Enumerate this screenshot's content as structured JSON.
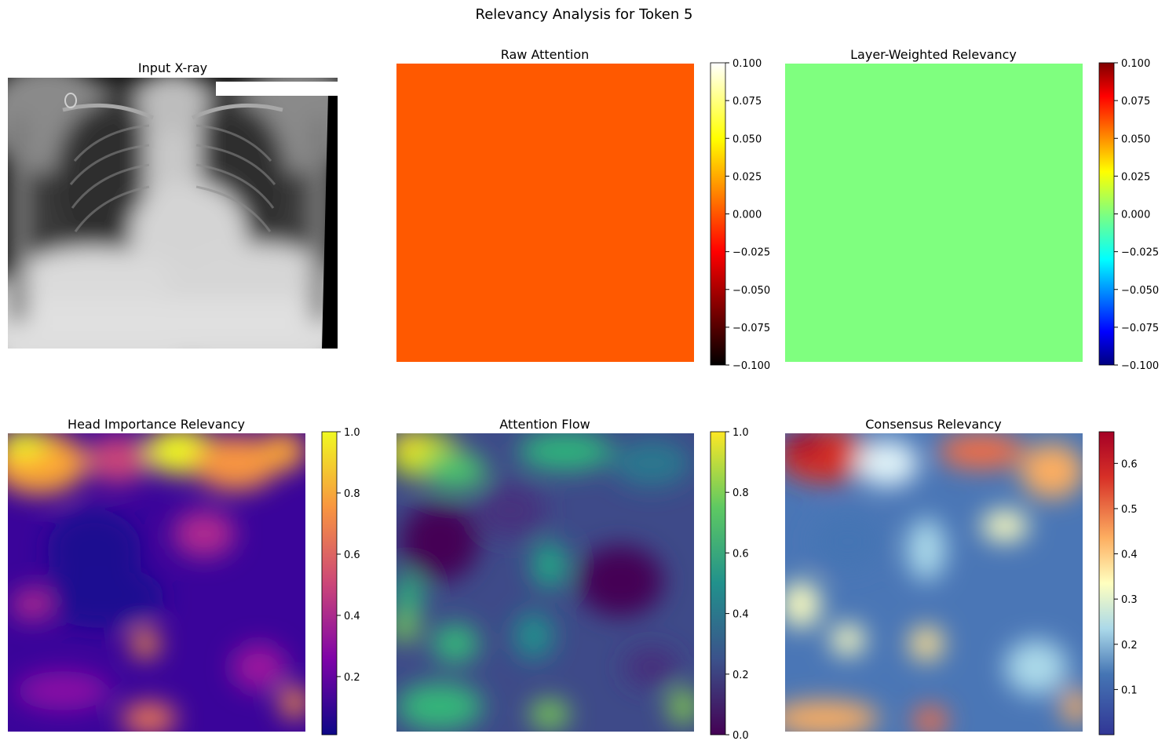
{
  "figure": {
    "title": "Relevancy Analysis for Token 5"
  },
  "chart_data": [
    {
      "type": "heatmap",
      "title": "Input X-ray",
      "colormap": "gray",
      "content": "grayscale chest x-ray image",
      "colorbar": null
    },
    {
      "type": "heatmap",
      "title": "Raw Attention",
      "colormap": "hot",
      "uniform_value": 0.0,
      "fill_color": "#ff5900",
      "colorbar": {
        "min": -0.1,
        "max": 0.1,
        "ticks": [
          0.1,
          0.075,
          0.05,
          0.025,
          0.0,
          -0.025,
          -0.05,
          -0.075,
          -0.1
        ],
        "tick_labels": [
          "0.100",
          "0.075",
          "0.050",
          "0.025",
          "0.000",
          "−0.025",
          "−0.050",
          "−0.075",
          "−0.100"
        ]
      }
    },
    {
      "type": "heatmap",
      "title": "Layer-Weighted Relevancy",
      "colormap": "jet",
      "uniform_value": 0.0,
      "fill_color": "#7fff7f",
      "colorbar": {
        "min": -0.1,
        "max": 0.1,
        "ticks": [
          0.1,
          0.075,
          0.05,
          0.025,
          0.0,
          -0.025,
          -0.05,
          -0.075,
          -0.1
        ],
        "tick_labels": [
          "0.100",
          "0.075",
          "0.050",
          "0.025",
          "0.000",
          "−0.025",
          "−0.050",
          "−0.075",
          "−0.100"
        ]
      }
    },
    {
      "type": "heatmap",
      "title": "Head Importance Relevancy",
      "colormap": "plasma",
      "value_range": [
        0.01,
        1.0
      ],
      "colorbar": {
        "min": 0.01,
        "max": 1.0,
        "ticks": [
          1.0,
          0.8,
          0.6,
          0.4,
          0.2
        ],
        "tick_labels": [
          "1.0",
          "0.8",
          "0.6",
          "0.4",
          "0.2"
        ]
      }
    },
    {
      "type": "heatmap",
      "title": "Attention Flow",
      "colormap": "viridis",
      "value_range": [
        0.0,
        1.0
      ],
      "colorbar": {
        "min": 0.0,
        "max": 1.0,
        "ticks": [
          1.0,
          0.8,
          0.6,
          0.4,
          0.2,
          0.0
        ],
        "tick_labels": [
          "1.0",
          "0.8",
          "0.6",
          "0.4",
          "0.2",
          "0.0"
        ]
      }
    },
    {
      "type": "heatmap",
      "title": "Consensus Relevancy",
      "colormap": "RdYlBu_r",
      "value_range": [
        0.0,
        0.67
      ],
      "colorbar": {
        "min": 0.0,
        "max": 0.67,
        "ticks": [
          0.6,
          0.5,
          0.4,
          0.3,
          0.2,
          0.1
        ],
        "tick_labels": [
          "0.6",
          "0.5",
          "0.4",
          "0.3",
          "0.2",
          "0.1"
        ]
      }
    }
  ]
}
